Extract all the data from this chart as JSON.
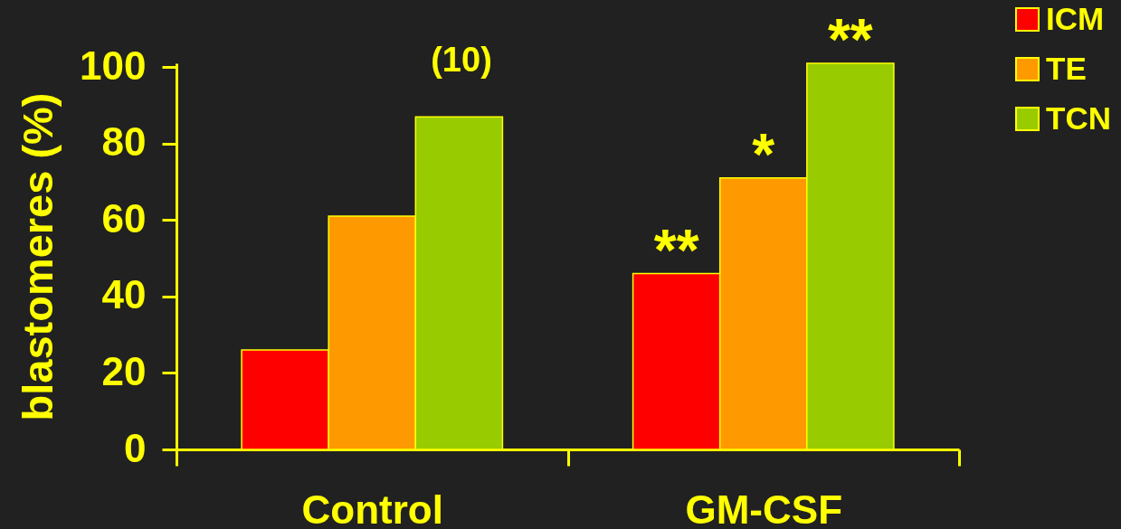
{
  "chart_data": {
    "type": "bar",
    "ylabel": "blastomeres (%)",
    "categories": [
      "Control",
      "GM-CSF"
    ],
    "series": [
      {
        "name": "ICM",
        "color": "#ff0000",
        "values": [
          26,
          46
        ],
        "value_labels": [
          null,
          "**"
        ]
      },
      {
        "name": "TE",
        "color": "#ff9900",
        "values": [
          61,
          71
        ],
        "value_labels": [
          null,
          "*"
        ]
      },
      {
        "name": "TCN",
        "color": "#99cc00",
        "values": [
          87,
          101
        ],
        "value_labels": [
          null,
          "**"
        ]
      }
    ],
    "annotations": [
      "(10)"
    ],
    "ylim": [
      0,
      101
    ],
    "yticks": [
      0,
      20,
      40,
      60,
      80,
      100
    ],
    "legend": "top right"
  }
}
